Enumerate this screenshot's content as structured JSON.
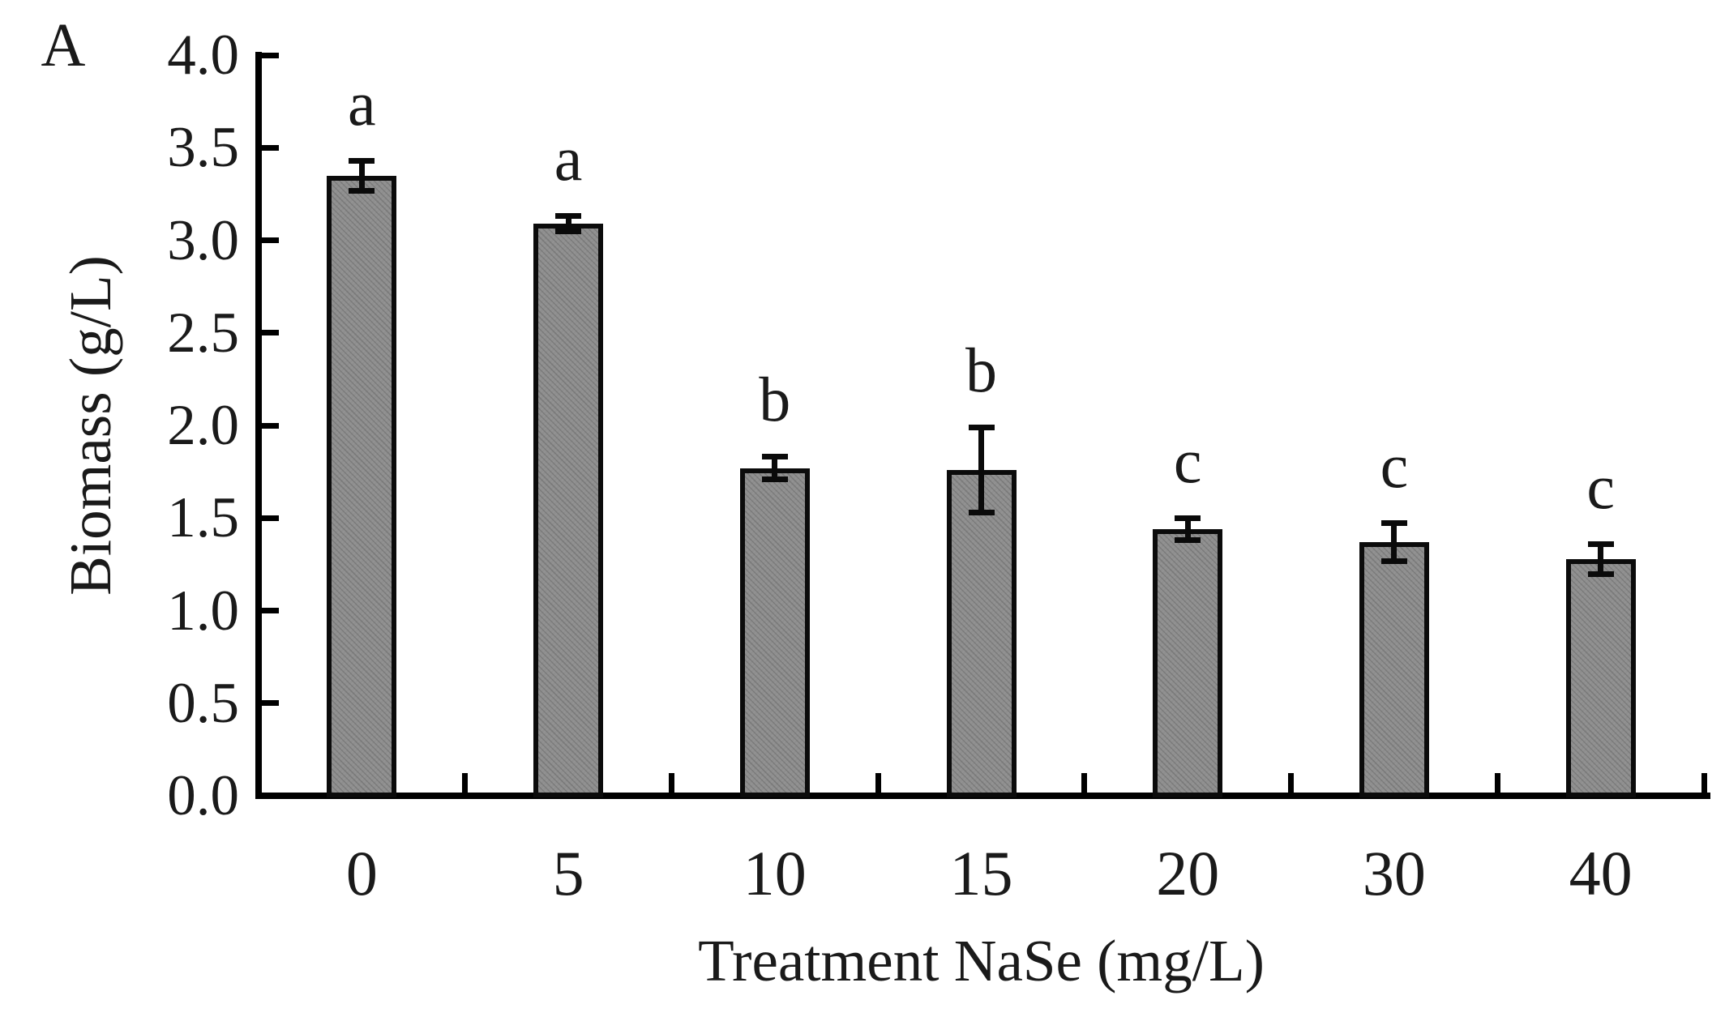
{
  "figure": {
    "panel_label": "A",
    "background": "#ffffff"
  },
  "chart_data": {
    "type": "bar",
    "title": "",
    "panel_label": "A",
    "xlabel": "Treatment NaSe (mg/L)",
    "ylabel": "Biomass (g/L)",
    "categories": [
      "0",
      "5",
      "10",
      "15",
      "20",
      "30",
      "40"
    ],
    "values": [
      3.35,
      3.09,
      1.77,
      1.76,
      1.44,
      1.37,
      1.28
    ],
    "errors": [
      0.07,
      0.03,
      0.05,
      0.22,
      0.05,
      0.09,
      0.07
    ],
    "sig_letters": [
      "a",
      "a",
      "b",
      "b",
      "c",
      "c",
      "c"
    ],
    "ylim": [
      0.0,
      4.0
    ],
    "ytick_step": 0.5,
    "ytick_labels": [
      "0.0",
      "0.5",
      "1.0",
      "1.5",
      "2.0",
      "2.5",
      "3.0",
      "3.5",
      "4.0"
    ],
    "grid": false,
    "legend": false,
    "bar_color": "#8e8e8e",
    "bar_border_color": "#0b0b0b",
    "error_bar_color": "#0a0a0a",
    "axis_color": "#000000",
    "text_color": "#1a1a1a"
  }
}
